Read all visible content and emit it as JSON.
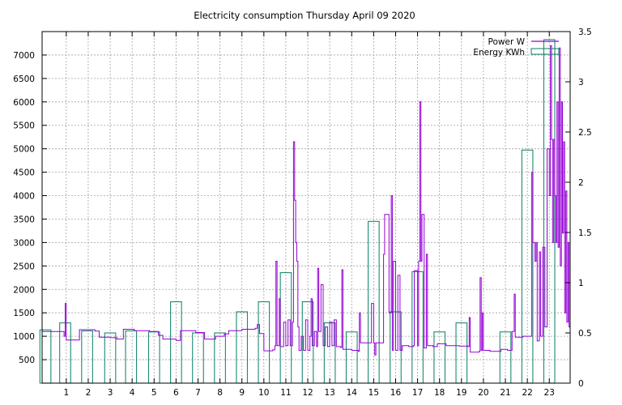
{
  "chart_data": {
    "type": "line",
    "title": "Electricity consumption Thursday April 09 2020",
    "x_ticks": [
      "1",
      "2",
      "3",
      "4",
      "5",
      "6",
      "7",
      "8",
      "9",
      "10",
      "11",
      "12",
      "13",
      "14",
      "15",
      "16",
      "17",
      "18",
      "19",
      "20",
      "21",
      "22",
      "23"
    ],
    "xlim": [
      -0.1,
      23.95
    ],
    "y_left": {
      "ticks": [
        500,
        1000,
        1500,
        2000,
        2500,
        3000,
        3500,
        4000,
        4500,
        5000,
        5500,
        6000,
        6500,
        7000
      ],
      "tick_labels": [
        "500",
        "1000",
        "1500",
        "2000",
        "2500",
        "3000",
        "3500",
        "4000",
        "4500",
        "5000",
        "5500",
        "6000",
        "6500",
        "7000"
      ],
      "lim": [
        0,
        7500
      ]
    },
    "y_right": {
      "ticks": [
        0,
        0.5,
        1,
        1.5,
        2,
        2.5,
        3,
        3.5
      ],
      "tick_labels": [
        "0",
        "0.5",
        "1",
        "1.5",
        "2",
        "2.5",
        "3",
        "3.5"
      ],
      "lim": [
        0,
        3.5
      ]
    },
    "grid": true,
    "legend_position": "top-right",
    "series": [
      {
        "name": "Power W",
        "axis": "left",
        "color": "#9400d3",
        "style": "line",
        "points": [
          [
            -0.1,
            1100
          ],
          [
            0.9,
            1000
          ],
          [
            0.95,
            1700
          ],
          [
            1.0,
            920
          ],
          [
            1.6,
            1140
          ],
          [
            2.3,
            1110
          ],
          [
            2.5,
            980
          ],
          [
            3.0,
            970
          ],
          [
            3.3,
            940
          ],
          [
            3.6,
            1150
          ],
          [
            4.1,
            1120
          ],
          [
            4.8,
            1100
          ],
          [
            5.2,
            1020
          ],
          [
            5.4,
            940
          ],
          [
            6.0,
            910
          ],
          [
            6.2,
            1120
          ],
          [
            6.9,
            1080
          ],
          [
            7.3,
            940
          ],
          [
            7.8,
            1000
          ],
          [
            8.2,
            1050
          ],
          [
            8.4,
            1120
          ],
          [
            9.0,
            1150
          ],
          [
            9.6,
            1170
          ],
          [
            9.7,
            1250
          ],
          [
            9.8,
            1060
          ],
          [
            10.0,
            690
          ],
          [
            10.4,
            710
          ],
          [
            10.5,
            800
          ],
          [
            10.55,
            2600
          ],
          [
            10.6,
            800
          ],
          [
            10.7,
            1800
          ],
          [
            10.75,
            780
          ],
          [
            10.9,
            1300
          ],
          [
            11.0,
            800
          ],
          [
            11.1,
            1350
          ],
          [
            11.2,
            800
          ],
          [
            11.3,
            1300
          ],
          [
            11.35,
            5150
          ],
          [
            11.4,
            3900
          ],
          [
            11.45,
            3000
          ],
          [
            11.5,
            2600
          ],
          [
            11.55,
            1200
          ],
          [
            11.6,
            700
          ],
          [
            11.7,
            1000
          ],
          [
            11.8,
            700
          ],
          [
            11.9,
            1350
          ],
          [
            12.0,
            700
          ],
          [
            12.1,
            1000
          ],
          [
            12.15,
            1800
          ],
          [
            12.2,
            800
          ],
          [
            12.3,
            1100
          ],
          [
            12.4,
            780
          ],
          [
            12.45,
            2450
          ],
          [
            12.5,
            1100
          ],
          [
            12.6,
            2100
          ],
          [
            12.7,
            800
          ],
          [
            12.8,
            1200
          ],
          [
            12.9,
            780
          ],
          [
            13.0,
            1300
          ],
          [
            13.1,
            800
          ],
          [
            13.2,
            1350
          ],
          [
            13.3,
            780
          ],
          [
            13.5,
            760
          ],
          [
            13.55,
            2420
          ],
          [
            13.6,
            720
          ],
          [
            14.0,
            700
          ],
          [
            14.3,
            680
          ],
          [
            14.35,
            1500
          ],
          [
            14.4,
            860
          ],
          [
            14.9,
            1700
          ],
          [
            15.0,
            860
          ],
          [
            15.05,
            600
          ],
          [
            15.1,
            860
          ],
          [
            15.4,
            860
          ],
          [
            15.45,
            2750
          ],
          [
            15.5,
            3600
          ],
          [
            15.6,
            3600
          ],
          [
            15.7,
            1500
          ],
          [
            15.8,
            4000
          ],
          [
            15.85,
            700
          ],
          [
            15.9,
            2600
          ],
          [
            16.0,
            700
          ],
          [
            16.1,
            2300
          ],
          [
            16.2,
            700
          ],
          [
            16.3,
            800
          ],
          [
            16.6,
            780
          ],
          [
            16.8,
            800
          ],
          [
            16.85,
            2400
          ],
          [
            17.0,
            800
          ],
          [
            17.05,
            2600
          ],
          [
            17.1,
            6000
          ],
          [
            17.15,
            2600
          ],
          [
            17.2,
            3600
          ],
          [
            17.3,
            750
          ],
          [
            17.4,
            2750
          ],
          [
            17.45,
            800
          ],
          [
            17.7,
            780
          ],
          [
            17.9,
            840
          ],
          [
            18.3,
            800
          ],
          [
            18.6,
            800
          ],
          [
            18.9,
            790
          ],
          [
            19.3,
            780
          ],
          [
            19.35,
            1400
          ],
          [
            19.4,
            660
          ],
          [
            19.8,
            680
          ],
          [
            19.85,
            2250
          ],
          [
            19.9,
            700
          ],
          [
            19.95,
            1500
          ],
          [
            20.0,
            700
          ],
          [
            20.3,
            680
          ],
          [
            20.8,
            720
          ],
          [
            21.1,
            700
          ],
          [
            21.3,
            1100
          ],
          [
            21.4,
            1900
          ],
          [
            21.45,
            980
          ],
          [
            21.8,
            1000
          ],
          [
            22.0,
            1000
          ],
          [
            22.1,
            1000
          ],
          [
            22.2,
            4500
          ],
          [
            22.25,
            3000
          ],
          [
            22.3,
            3000
          ],
          [
            22.35,
            2600
          ],
          [
            22.4,
            3000
          ],
          [
            22.45,
            900
          ],
          [
            22.55,
            2800
          ],
          [
            22.6,
            1000
          ],
          [
            22.7,
            2900
          ],
          [
            22.8,
            1200
          ],
          [
            22.9,
            5000
          ],
          [
            23.0,
            4000
          ],
          [
            23.05,
            7200
          ],
          [
            23.1,
            5200
          ],
          [
            23.15,
            3000
          ],
          [
            23.2,
            5200
          ],
          [
            23.25,
            4000
          ],
          [
            23.3,
            3000
          ],
          [
            23.35,
            6000
          ],
          [
            23.4,
            2900
          ],
          [
            23.45,
            7150
          ],
          [
            23.5,
            2500
          ],
          [
            23.55,
            6000
          ],
          [
            23.6,
            3200
          ],
          [
            23.65,
            5150
          ],
          [
            23.7,
            1500
          ],
          [
            23.75,
            4100
          ],
          [
            23.8,
            1300
          ],
          [
            23.85,
            3000
          ],
          [
            23.9,
            1200
          ],
          [
            23.95,
            2600
          ]
        ]
      },
      {
        "name": "Energy KWh",
        "axis": "right",
        "color": "#1b8a73",
        "style": "bars",
        "bars": [
          [
            0.05,
            0.53
          ],
          [
            0.95,
            0.6
          ],
          [
            1.95,
            0.52
          ],
          [
            3.0,
            0.5
          ],
          [
            3.95,
            0.52
          ],
          [
            5.0,
            0.51
          ],
          [
            6.0,
            0.81
          ],
          [
            7.0,
            0.5
          ],
          [
            8.0,
            0.5
          ],
          [
            9.0,
            0.71
          ],
          [
            10.0,
            0.81
          ],
          [
            11.0,
            1.1
          ],
          [
            12.0,
            0.81
          ],
          [
            13.0,
            0.6
          ],
          [
            14.0,
            0.51
          ],
          [
            15.0,
            1.61
          ],
          [
            16.0,
            0.71
          ],
          [
            17.0,
            1.11
          ],
          [
            18.0,
            0.51
          ],
          [
            19.0,
            0.6
          ],
          [
            20.0,
            0.0
          ],
          [
            21.0,
            0.51
          ],
          [
            22.0,
            2.32
          ],
          [
            23.0,
            3.42
          ]
        ]
      }
    ]
  }
}
